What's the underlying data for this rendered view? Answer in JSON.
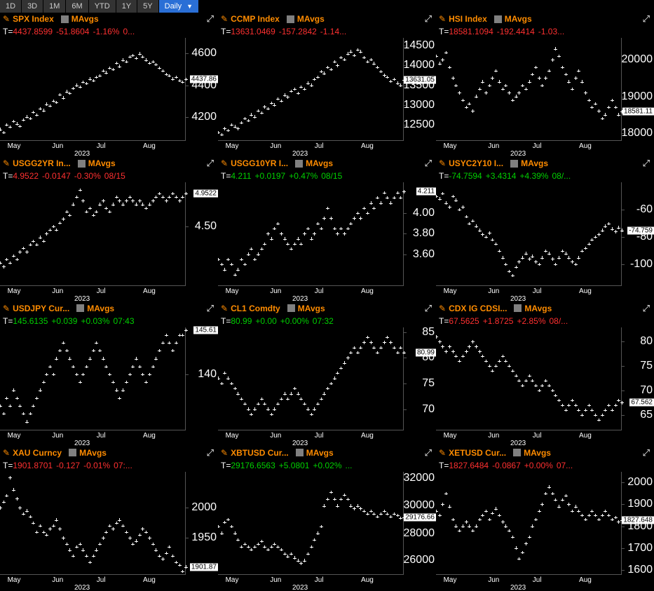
{
  "toolbar": {
    "ranges": [
      "1D",
      "3D",
      "1M",
      "6M",
      "YTD",
      "1Y",
      "5Y"
    ],
    "freq": "Daily"
  },
  "xAxis": {
    "months": [
      "May",
      "Jun",
      "Jul",
      "Aug"
    ],
    "year": "2023"
  },
  "colors": {
    "bg": "#000000",
    "orange": "#ff8c00",
    "red": "#ff3030",
    "green": "#00d000",
    "white": "#ffffff",
    "gray": "#808080",
    "axisLine": "#555555",
    "flagBg": "#ffffff",
    "flagText": "#000000"
  },
  "panels": [
    {
      "ticker": "SPX Index",
      "mavgs": "MAvgs",
      "value": "4437.8599",
      "change": "-51.8604",
      "pct": "-1.16%",
      "time": "0...",
      "color": "red",
      "flag": "4437.86",
      "yticks": [
        {
          "v": 4600,
          "l": "4600"
        },
        {
          "v": 4400,
          "l": "4400"
        },
        {
          "v": 4200,
          "l": "4200"
        }
      ],
      "ylim": [
        4050,
        4700
      ],
      "series": [
        4120,
        4100,
        4150,
        4135,
        4170,
        4155,
        4140,
        4180,
        4200,
        4190,
        4230,
        4210,
        4250,
        4240,
        4280,
        4270,
        4300,
        4290,
        4340,
        4320,
        4360,
        4350,
        4380,
        4400,
        4390,
        4420,
        4410,
        4440,
        4430,
        4450,
        4460,
        4490,
        4480,
        4510,
        4500,
        4540,
        4520,
        4560,
        4550,
        4580,
        4590,
        4570,
        4600,
        4580,
        4560,
        4540,
        4550,
        4530,
        4510,
        4490,
        4470,
        4460,
        4440,
        4450,
        4430,
        4420,
        4438
      ]
    },
    {
      "ticker": "CCMP Index",
      "mavgs": "MAvgs",
      "value": "13631.0469",
      "change": "-157.2842",
      "pct": "-1.14...",
      "time": "",
      "color": "red",
      "flag": "13631.05",
      "yticks": [
        {
          "v": 14500,
          "l": "14500"
        },
        {
          "v": 14000,
          "l": "14000"
        },
        {
          "v": 13500,
          "l": "13500"
        },
        {
          "v": 13000,
          "l": "13000"
        },
        {
          "v": 12500,
          "l": "12500"
        }
      ],
      "ylim": [
        12100,
        14700
      ],
      "series": [
        12300,
        12250,
        12400,
        12350,
        12500,
        12450,
        12400,
        12550,
        12650,
        12600,
        12750,
        12700,
        12850,
        12800,
        12950,
        12900,
        13050,
        13000,
        13150,
        13100,
        13250,
        13200,
        13350,
        13400,
        13300,
        13450,
        13400,
        13550,
        13500,
        13650,
        13700,
        13850,
        13800,
        13950,
        13900,
        14100,
        14000,
        14200,
        14150,
        14300,
        14350,
        14250,
        14400,
        14350,
        14200,
        14100,
        14150,
        14050,
        13950,
        13850,
        13750,
        13700,
        13600,
        13650,
        13550,
        13500,
        13631
      ]
    },
    {
      "ticker": "HSI Index",
      "mavgs": "MAvgs",
      "value": "18581.1094",
      "change": "-192.4414",
      "pct": "-1.03...",
      "time": "",
      "color": "red",
      "flag": "18581.11",
      "yticks": [
        {
          "v": 20000,
          "l": "20000"
        },
        {
          "v": 19000,
          "l": "19000"
        },
        {
          "v": 18000,
          "l": "18000"
        }
      ],
      "ylim": [
        17800,
        20600
      ],
      "series": [
        20100,
        19900,
        20000,
        20200,
        19800,
        19500,
        19300,
        19100,
        18900,
        18700,
        18800,
        18600,
        19000,
        19200,
        19400,
        19100,
        19300,
        19500,
        19700,
        19400,
        19200,
        19300,
        19100,
        18900,
        19000,
        19100,
        19300,
        19200,
        19400,
        19600,
        19800,
        19500,
        19300,
        19500,
        19700,
        20000,
        20300,
        20100,
        19800,
        19600,
        19400,
        19200,
        19500,
        19700,
        19400,
        19100,
        18900,
        18700,
        18800,
        18600,
        18400,
        18500,
        18700,
        18900,
        18700,
        18500,
        18581
      ]
    },
    {
      "ticker": "USGG2YR In...",
      "mavgs": "MAvgs",
      "value": "4.9522",
      "change": "-0.0147",
      "pct": "-0.30%",
      "time": "08/15",
      "color": "red",
      "flag": "4.9522",
      "yticks": [
        {
          "v": 4.5,
          "l": "4.50"
        }
      ],
      "ylim": [
        3.7,
        5.1
      ],
      "series": [
        4.0,
        3.95,
        4.05,
        4.0,
        4.1,
        4.05,
        4.15,
        4.2,
        4.15,
        4.25,
        4.3,
        4.25,
        4.35,
        4.3,
        4.4,
        4.45,
        4.5,
        4.45,
        4.55,
        4.6,
        4.7,
        4.65,
        4.8,
        4.9,
        5.0,
        4.85,
        4.7,
        4.75,
        4.65,
        4.7,
        4.8,
        4.85,
        4.75,
        4.7,
        4.8,
        4.9,
        4.85,
        4.8,
        4.85,
        4.9,
        4.85,
        4.8,
        4.85,
        4.8,
        4.75,
        4.8,
        4.85,
        4.9,
        4.95,
        4.9,
        4.85,
        4.9,
        4.95,
        4.9,
        4.85,
        4.9,
        4.95
      ]
    },
    {
      "ticker": "USGG10YR I...",
      "mavgs": "MAvgs",
      "value": "4.211",
      "change": "+0.0197",
      "pct": "+0.47%",
      "time": "08/15",
      "color": "green",
      "flag": "4.211",
      "yticks": [
        {
          "v": 4.0,
          "l": "4.00"
        },
        {
          "v": 3.8,
          "l": "3.80"
        },
        {
          "v": 3.6,
          "l": "3.60"
        }
      ],
      "ylim": [
        3.3,
        4.3
      ],
      "series": [
        3.55,
        3.5,
        3.45,
        3.55,
        3.5,
        3.4,
        3.45,
        3.55,
        3.5,
        3.6,
        3.65,
        3.55,
        3.6,
        3.65,
        3.7,
        3.8,
        3.75,
        3.85,
        3.9,
        3.8,
        3.75,
        3.7,
        3.65,
        3.7,
        3.75,
        3.7,
        3.8,
        3.85,
        3.75,
        3.8,
        3.9,
        3.85,
        3.95,
        4.05,
        3.95,
        3.85,
        3.8,
        3.85,
        3.8,
        3.85,
        3.9,
        3.95,
        4.0,
        3.95,
        4.05,
        4.0,
        4.1,
        4.05,
        4.15,
        4.1,
        4.2,
        4.15,
        4.1,
        4.15,
        4.2,
        4.15,
        4.21
      ]
    },
    {
      "ticker": "USYC2Y10 I...",
      "mavgs": "MAvgs",
      "value": "-74.7594",
      "change": "+3.4314",
      "pct": "+4.39%",
      "time": "08/...",
      "color": "green",
      "flag": "-74.759",
      "yticks": [
        {
          "v": -60,
          "l": "-60"
        },
        {
          "v": -80,
          "l": "-80"
        },
        {
          "v": -100,
          "l": "-100"
        }
      ],
      "ylim": [
        -115,
        -40
      ],
      "series": [
        -50,
        -52,
        -48,
        -55,
        -58,
        -50,
        -53,
        -60,
        -58,
        -65,
        -70,
        -68,
        -72,
        -75,
        -78,
        -80,
        -77,
        -82,
        -85,
        -90,
        -95,
        -100,
        -105,
        -108,
        -102,
        -98,
        -95,
        -92,
        -96,
        -94,
        -98,
        -100,
        -95,
        -90,
        -92,
        -96,
        -100,
        -95,
        -90,
        -92,
        -95,
        -98,
        -100,
        -95,
        -90,
        -88,
        -85,
        -82,
        -80,
        -78,
        -75,
        -72,
        -70,
        -74,
        -76,
        -73,
        -75
      ]
    },
    {
      "ticker": "USDJPY Cur...",
      "mavgs": "MAvgs",
      "value": "145.6135",
      "change": "+0.039",
      "pct": "+0.03%",
      "time": "07:43",
      "color": "green",
      "flag": "145.61",
      "yticks": [
        {
          "v": 140,
          "l": "140"
        }
      ],
      "ylim": [
        133,
        146
      ],
      "series": [
        136,
        135,
        137,
        136,
        138,
        137,
        136,
        135,
        134,
        135,
        136,
        137,
        138,
        139,
        140,
        141,
        140,
        142,
        143,
        144,
        143,
        142,
        141,
        140,
        139,
        140,
        141,
        142,
        143,
        144,
        143,
        142,
        141,
        140,
        139,
        138,
        137,
        138,
        139,
        140,
        141,
        142,
        141,
        140,
        139,
        140,
        141,
        142,
        143,
        144,
        145,
        144,
        143,
        144,
        145,
        145,
        145.6
      ]
    },
    {
      "ticker": "CL1 Comdty",
      "mavgs": "MAvgs",
      "value": "80.99",
      "change": "+0.00",
      "pct": "+0.00%",
      "time": "07:32",
      "color": "green",
      "flag": "80.99",
      "yticks": [
        {
          "v": 85,
          "l": "85"
        },
        {
          "v": 80,
          "l": "80"
        },
        {
          "v": 75,
          "l": "75"
        },
        {
          "v": 70,
          "l": "70"
        }
      ],
      "ylim": [
        66,
        86
      ],
      "series": [
        76,
        75,
        77,
        76,
        75,
        74,
        73,
        72,
        71,
        70,
        69,
        70,
        71,
        72,
        71,
        70,
        69,
        70,
        71,
        72,
        73,
        72,
        73,
        74,
        73,
        72,
        71,
        70,
        69,
        70,
        71,
        72,
        73,
        74,
        75,
        76,
        77,
        78,
        79,
        80,
        81,
        82,
        81,
        82,
        83,
        84,
        83,
        82,
        81,
        82,
        83,
        84,
        83,
        82,
        81,
        82,
        81
      ]
    },
    {
      "ticker": "CDX IG CDSI...",
      "mavgs": "MAvgs",
      "value": "67.5625",
      "change": "+1.8725",
      "pct": "+2.85%",
      "time": "08/...",
      "color": "red",
      "flag": "67.562",
      "yticks": [
        {
          "v": 80,
          "l": "80"
        },
        {
          "v": 75,
          "l": "75"
        },
        {
          "v": 70,
          "l": "70"
        },
        {
          "v": 65,
          "l": "65"
        }
      ],
      "ylim": [
        62,
        83
      ],
      "series": [
        81,
        80,
        79,
        78,
        79,
        78,
        77,
        76,
        77,
        78,
        79,
        80,
        79,
        78,
        77,
        76,
        75,
        74,
        75,
        76,
        77,
        76,
        75,
        74,
        73,
        72,
        71,
        72,
        73,
        72,
        71,
        70,
        71,
        72,
        71,
        70,
        69,
        68,
        67,
        66,
        67,
        68,
        67,
        66,
        65,
        66,
        67,
        66,
        65,
        64,
        65,
        66,
        67,
        66,
        67,
        68,
        67.5
      ]
    },
    {
      "ticker": "XAU Curncy",
      "mavgs": "MAvgs",
      "value": "1901.8701",
      "change": "-0.127",
      "pct": "-0.01%",
      "time": "07:...",
      "color": "red",
      "flag": "1901.87",
      "yticks": [
        {
          "v": 2000,
          "l": "2000"
        },
        {
          "v": 1950,
          "l": "1950"
        }
      ],
      "ylim": [
        1890,
        2060
      ],
      "series": [
        2000,
        2010,
        2020,
        2050,
        2030,
        2015,
        2000,
        1990,
        1995,
        1985,
        1975,
        1960,
        1970,
        1960,
        1955,
        1965,
        1970,
        1980,
        1965,
        1950,
        1940,
        1930,
        1920,
        1935,
        1940,
        1930,
        1920,
        1910,
        1920,
        1930,
        1940,
        1950,
        1960,
        1970,
        1965,
        1975,
        1980,
        1970,
        1960,
        1950,
        1940,
        1945,
        1955,
        1965,
        1960,
        1950,
        1940,
        1930,
        1920,
        1915,
        1925,
        1935,
        1920,
        1910,
        1905,
        1895,
        1902
      ]
    },
    {
      "ticker": "XBTUSD Cur...",
      "mavgs": "MAvgs",
      "value": "29176.6563",
      "change": "+5.0801",
      "pct": "+0.02%",
      "time": "...",
      "color": "green",
      "flag": "29176.66",
      "yticks": [
        {
          "v": 32000,
          "l": "32000"
        },
        {
          "v": 30000,
          "l": "30000"
        },
        {
          "v": 28000,
          "l": "28000"
        },
        {
          "v": 26000,
          "l": "26000"
        }
      ],
      "ylim": [
        25000,
        32500
      ],
      "series": [
        28500,
        28000,
        28800,
        29000,
        28500,
        28000,
        27500,
        27000,
        27200,
        27000,
        26800,
        27000,
        27200,
        27400,
        27000,
        26800,
        27000,
        27200,
        27000,
        26800,
        26500,
        26300,
        26500,
        26200,
        26000,
        25800,
        26000,
        26500,
        27000,
        27500,
        28000,
        28500,
        30000,
        30500,
        31000,
        30500,
        30000,
        30500,
        30800,
        30500,
        30000,
        29800,
        30000,
        29800,
        29600,
        29400,
        29600,
        29400,
        29200,
        29400,
        29600,
        29400,
        29200,
        29400,
        29300,
        29100,
        29177
      ]
    },
    {
      "ticker": "XETUSD Cur...",
      "mavgs": "MAvgs",
      "value": "1827.6484",
      "change": "-0.0867",
      "pct": "+0.00%",
      "time": "07...",
      "color": "red",
      "flag": "1827.648",
      "yticks": [
        {
          "v": 2000,
          "l": "2000"
        },
        {
          "v": 1900,
          "l": "1900"
        },
        {
          "v": 1800,
          "l": "1800"
        },
        {
          "v": 1700,
          "l": "1700"
        },
        {
          "v": 1600,
          "l": "1600"
        }
      ],
      "ylim": [
        1580,
        2050
      ],
      "series": [
        1870,
        1850,
        1900,
        1950,
        1890,
        1830,
        1800,
        1780,
        1800,
        1820,
        1800,
        1780,
        1800,
        1830,
        1850,
        1870,
        1830,
        1860,
        1880,
        1850,
        1820,
        1800,
        1780,
        1750,
        1700,
        1650,
        1680,
        1720,
        1750,
        1800,
        1830,
        1870,
        1900,
        1950,
        1980,
        1950,
        1920,
        1890,
        1920,
        1940,
        1900,
        1870,
        1890,
        1870,
        1850,
        1830,
        1850,
        1870,
        1850,
        1830,
        1850,
        1870,
        1850,
        1830,
        1840,
        1820,
        1828
      ]
    }
  ]
}
